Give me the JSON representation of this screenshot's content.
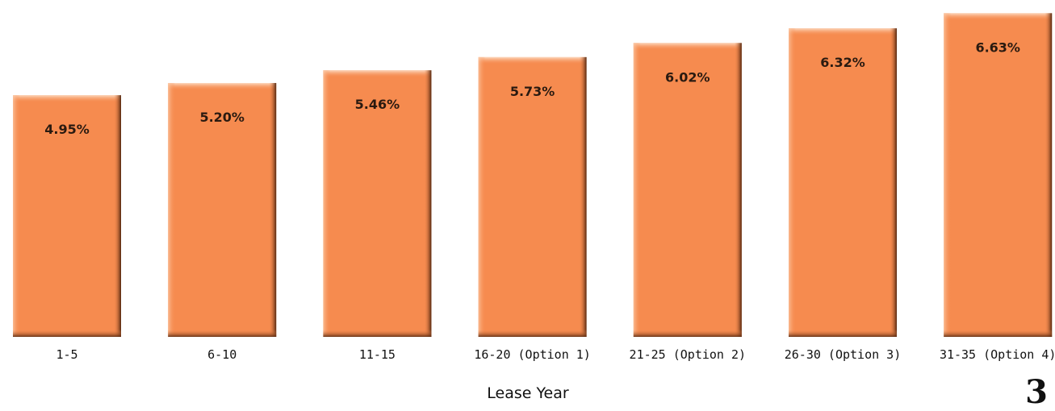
{
  "chart_data": {
    "type": "bar",
    "title": "",
    "xlabel": "Lease Year",
    "ylabel": "",
    "ylim": [
      0,
      6.9
    ],
    "grid": false,
    "legend": "none",
    "categories": [
      "1-5",
      "6-10",
      "11-15",
      "16-20 (Option 1)",
      "21-25 (Option 2)",
      "26-30 (Option 3)",
      "31-35 (Option 4)"
    ],
    "values": [
      4.95,
      5.2,
      5.46,
      5.73,
      6.02,
      6.32,
      6.63
    ],
    "data_labels": [
      "4.95%",
      "5.20%",
      "5.46%",
      "5.73%",
      "6.02%",
      "6.32%",
      "6.63%"
    ],
    "colors": {
      "bar_fill": "#F68B4F",
      "bar_highlight": "#FBC7A2",
      "bar_shadow": "#5A2A10"
    }
  },
  "page_number": "3"
}
